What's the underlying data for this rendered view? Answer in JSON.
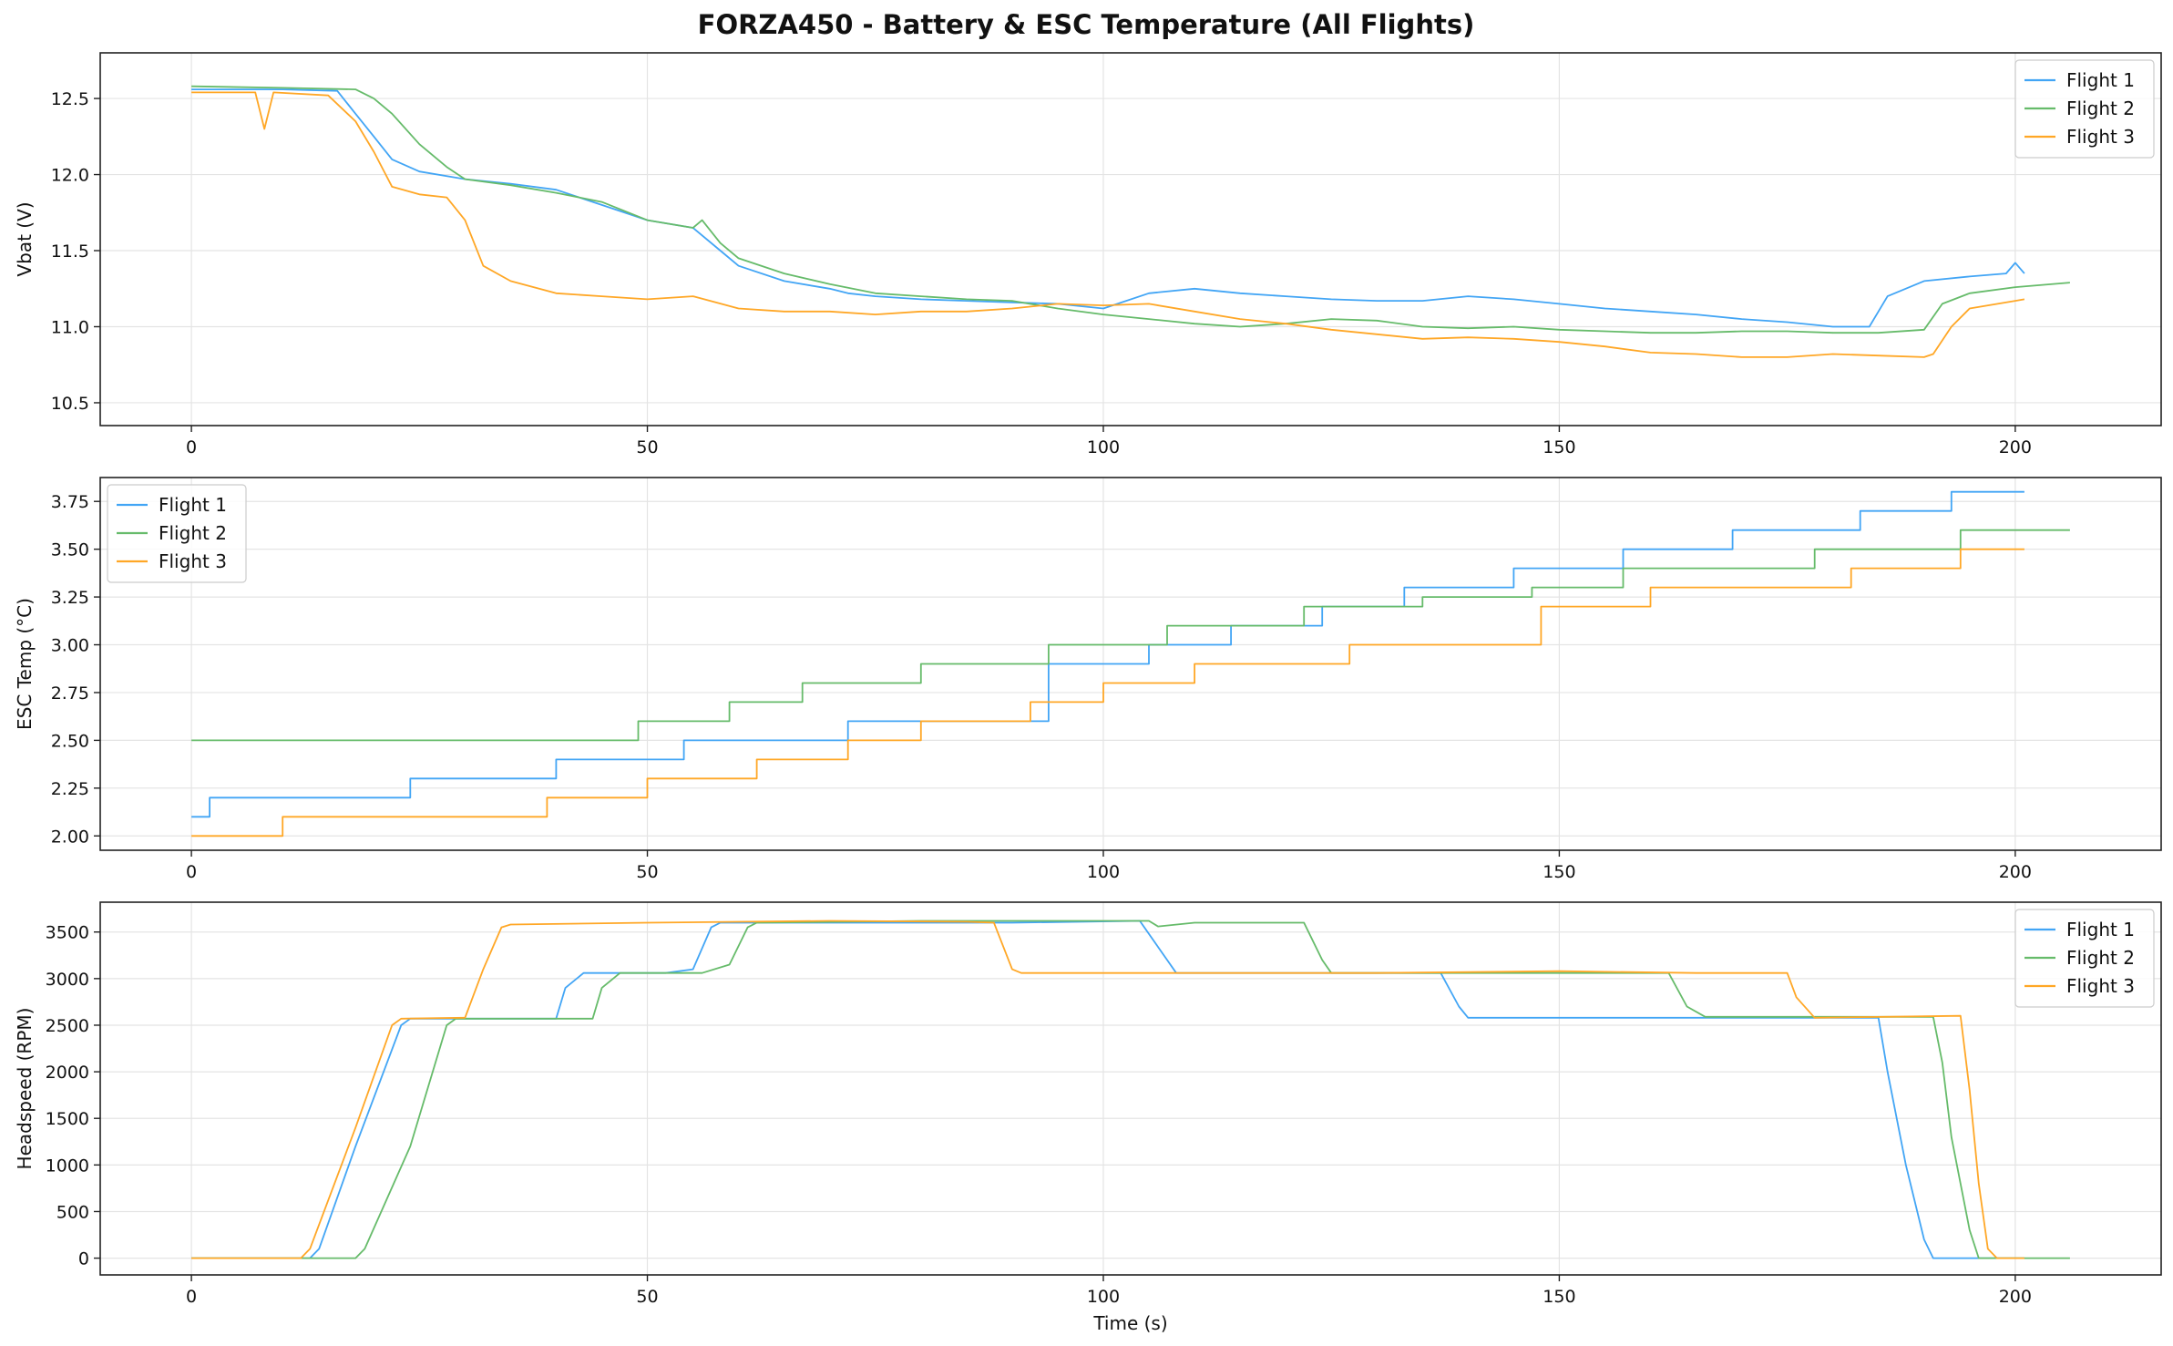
{
  "title": "FORZA450 - Battery & ESC Temperature (All Flights)",
  "colors": {
    "Flight 1": "#42a5f5",
    "Flight 2": "#66bb6a",
    "Flight 3": "#ffa726"
  },
  "chart_data": [
    {
      "type": "line",
      "title": "",
      "xlabel": "",
      "ylabel": "Vbat (V)",
      "xlim": [
        -10,
        216
      ],
      "ylim": [
        10.35,
        12.8
      ],
      "xticks": [
        0,
        50,
        100,
        150,
        200
      ],
      "yticks": [
        10.5,
        11.0,
        11.5,
        12.0,
        12.5
      ],
      "ytick_labels": [
        "10.5",
        "11.0",
        "11.5",
        "12.0",
        "12.5"
      ],
      "grid": true,
      "legend_position": "upper right",
      "series": [
        {
          "name": "Flight 1",
          "x": [
            0,
            10,
            16,
            18,
            20,
            22,
            25,
            30,
            35,
            40,
            45,
            50,
            55,
            58,
            60,
            65,
            70,
            72,
            75,
            80,
            85,
            90,
            95,
            100,
            105,
            110,
            115,
            120,
            125,
            130,
            135,
            140,
            145,
            150,
            155,
            160,
            165,
            170,
            175,
            180,
            184,
            185,
            186,
            190,
            195,
            199,
            200,
            201
          ],
          "y": [
            12.56,
            12.56,
            12.55,
            12.4,
            12.25,
            12.1,
            12.02,
            11.97,
            11.94,
            11.9,
            11.8,
            11.7,
            11.65,
            11.5,
            11.4,
            11.3,
            11.25,
            11.22,
            11.2,
            11.18,
            11.17,
            11.16,
            11.15,
            11.12,
            11.22,
            11.25,
            11.22,
            11.2,
            11.18,
            11.17,
            11.17,
            11.2,
            11.18,
            11.15,
            11.12,
            11.1,
            11.08,
            11.05,
            11.03,
            11.0,
            11.0,
            11.1,
            11.2,
            11.3,
            11.33,
            11.35,
            11.42,
            11.35
          ]
        },
        {
          "name": "Flight 2",
          "x": [
            0,
            10,
            18,
            20,
            22,
            25,
            28,
            30,
            35,
            40,
            45,
            50,
            55,
            56,
            58,
            60,
            65,
            70,
            75,
            80,
            85,
            90,
            95,
            100,
            105,
            110,
            115,
            120,
            125,
            130,
            135,
            140,
            145,
            150,
            155,
            160,
            165,
            170,
            175,
            180,
            185,
            190,
            192,
            195,
            200,
            206
          ],
          "y": [
            12.58,
            12.57,
            12.56,
            12.5,
            12.4,
            12.2,
            12.05,
            11.97,
            11.93,
            11.88,
            11.82,
            11.7,
            11.65,
            11.7,
            11.55,
            11.45,
            11.35,
            11.28,
            11.22,
            11.2,
            11.18,
            11.17,
            11.12,
            11.08,
            11.05,
            11.02,
            11.0,
            11.02,
            11.05,
            11.04,
            11.0,
            10.99,
            11.0,
            10.98,
            10.97,
            10.96,
            10.96,
            10.97,
            10.97,
            10.96,
            10.96,
            10.98,
            11.15,
            11.22,
            11.26,
            11.29
          ]
        },
        {
          "name": "Flight 3",
          "x": [
            0,
            7,
            8,
            9,
            15,
            18,
            20,
            22,
            25,
            28,
            30,
            32,
            35,
            40,
            45,
            50,
            55,
            60,
            65,
            70,
            75,
            80,
            85,
            90,
            95,
            100,
            105,
            110,
            115,
            120,
            125,
            130,
            135,
            140,
            145,
            150,
            155,
            160,
            165,
            170,
            175,
            180,
            185,
            190,
            191,
            193,
            195,
            200,
            201
          ],
          "y": [
            12.54,
            12.54,
            12.3,
            12.54,
            12.52,
            12.35,
            12.15,
            11.92,
            11.87,
            11.85,
            11.7,
            11.4,
            11.3,
            11.22,
            11.2,
            11.18,
            11.2,
            11.12,
            11.1,
            11.1,
            11.08,
            11.1,
            11.1,
            11.12,
            11.15,
            11.14,
            11.15,
            11.1,
            11.05,
            11.02,
            10.98,
            10.95,
            10.92,
            10.93,
            10.92,
            10.9,
            10.87,
            10.83,
            10.82,
            10.8,
            10.8,
            10.82,
            10.81,
            10.8,
            10.82,
            11.0,
            11.12,
            11.17,
            11.18
          ]
        }
      ]
    },
    {
      "type": "line",
      "title": "",
      "xlabel": "",
      "ylabel": "ESC Temp (°C)",
      "xlim": [
        -10,
        216
      ],
      "ylim": [
        1.925,
        3.875
      ],
      "xticks": [
        0,
        50,
        100,
        150,
        200
      ],
      "yticks": [
        2.0,
        2.25,
        2.5,
        2.75,
        3.0,
        3.25,
        3.5,
        3.75
      ],
      "ytick_labels": [
        "2.00",
        "2.25",
        "2.50",
        "2.75",
        "3.00",
        "3.25",
        "3.50",
        "3.75"
      ],
      "grid": true,
      "legend_position": "upper left",
      "series": [
        {
          "name": "Flight 1",
          "x": [
            0,
            2,
            2,
            24,
            24,
            40,
            40,
            54,
            54,
            72,
            72,
            94,
            94,
            105,
            105,
            114,
            114,
            124,
            124,
            133,
            133,
            145,
            145,
            157,
            157,
            169,
            169,
            183,
            183,
            193,
            193,
            201
          ],
          "y": [
            2.1,
            2.1,
            2.2,
            2.2,
            2.3,
            2.3,
            2.4,
            2.4,
            2.5,
            2.5,
            2.6,
            2.6,
            2.9,
            2.9,
            3.0,
            3.0,
            3.1,
            3.1,
            3.2,
            3.2,
            3.3,
            3.3,
            3.4,
            3.4,
            3.5,
            3.5,
            3.6,
            3.6,
            3.7,
            3.7,
            3.8,
            3.8
          ]
        },
        {
          "name": "Flight 2",
          "x": [
            0,
            49,
            49,
            59,
            59,
            67,
            67,
            80,
            80,
            94,
            94,
            107,
            107,
            122,
            122,
            135,
            135,
            147,
            147,
            157,
            157,
            178,
            178,
            194,
            194,
            206
          ],
          "y": [
            2.5,
            2.5,
            2.6,
            2.6,
            2.7,
            2.7,
            2.8,
            2.8,
            2.9,
            2.9,
            3.0,
            3.0,
            3.1,
            3.1,
            3.2,
            3.2,
            3.25,
            3.25,
            3.3,
            3.3,
            3.4,
            3.4,
            3.5,
            3.5,
            3.6,
            3.6
          ]
        },
        {
          "name": "Flight 3",
          "x": [
            0,
            10,
            10,
            39,
            39,
            50,
            50,
            62,
            62,
            72,
            72,
            80,
            80,
            92,
            92,
            100,
            100,
            110,
            110,
            127,
            127,
            148,
            148,
            160,
            160,
            182,
            182,
            194,
            194,
            201
          ],
          "y": [
            2.0,
            2.0,
            2.1,
            2.1,
            2.2,
            2.2,
            2.3,
            2.3,
            2.4,
            2.4,
            2.5,
            2.5,
            2.6,
            2.6,
            2.7,
            2.7,
            2.8,
            2.8,
            2.9,
            2.9,
            3.0,
            3.0,
            3.2,
            3.2,
            3.3,
            3.3,
            3.4,
            3.4,
            3.5,
            3.5
          ]
        }
      ]
    },
    {
      "type": "line",
      "title": "",
      "xlabel": "Time (s)",
      "ylabel": "Headspeed (RPM)",
      "xlim": [
        -10,
        216
      ],
      "ylim": [
        -180,
        3820
      ],
      "xticks": [
        0,
        50,
        100,
        150,
        200
      ],
      "yticks": [
        0,
        500,
        1000,
        1500,
        2000,
        2500,
        3000,
        3500
      ],
      "ytick_labels": [
        "0",
        "500",
        "1000",
        "1500",
        "2000",
        "2500",
        "3000",
        "3500"
      ],
      "grid": true,
      "legend_position": "upper right",
      "series": [
        {
          "name": "Flight 1",
          "x": [
            0,
            13,
            14,
            18,
            23,
            24,
            40,
            41,
            43,
            52,
            55,
            57,
            58,
            70,
            90,
            104,
            107,
            108,
            125,
            137,
            139,
            140,
            160,
            185,
            186,
            188,
            190,
            191,
            201
          ],
          "y": [
            0,
            0,
            100,
            1200,
            2500,
            2570,
            2570,
            2900,
            3060,
            3060,
            3100,
            3550,
            3600,
            3600,
            3600,
            3620,
            3200,
            3060,
            3060,
            3060,
            2700,
            2580,
            2580,
            2580,
            2000,
            1000,
            200,
            0,
            0
          ]
        },
        {
          "name": "Flight 2",
          "x": [
            0,
            18,
            19,
            24,
            28,
            29,
            44,
            45,
            47,
            56,
            59,
            61,
            62,
            80,
            105,
            106,
            110,
            122,
            124,
            125,
            140,
            162,
            164,
            166,
            185,
            191,
            192,
            193,
            195,
            196,
            206
          ],
          "y": [
            0,
            0,
            100,
            1200,
            2500,
            2570,
            2570,
            2900,
            3060,
            3060,
            3150,
            3550,
            3600,
            3620,
            3620,
            3560,
            3600,
            3600,
            3200,
            3060,
            3060,
            3060,
            2700,
            2590,
            2590,
            2590,
            2100,
            1300,
            300,
            0,
            0
          ]
        },
        {
          "name": "Flight 3",
          "x": [
            0,
            12,
            13,
            18,
            22,
            23,
            30,
            32,
            34,
            35,
            50,
            70,
            85,
            88,
            90,
            91,
            110,
            130,
            150,
            165,
            175,
            176,
            178,
            194,
            195,
            196,
            197,
            198,
            200,
            201
          ],
          "y": [
            0,
            0,
            100,
            1400,
            2500,
            2570,
            2580,
            3100,
            3550,
            3580,
            3600,
            3620,
            3610,
            3600,
            3100,
            3060,
            3060,
            3060,
            3080,
            3060,
            3060,
            2800,
            2580,
            2600,
            1800,
            800,
            100,
            0,
            0,
            0
          ]
        }
      ]
    }
  ]
}
